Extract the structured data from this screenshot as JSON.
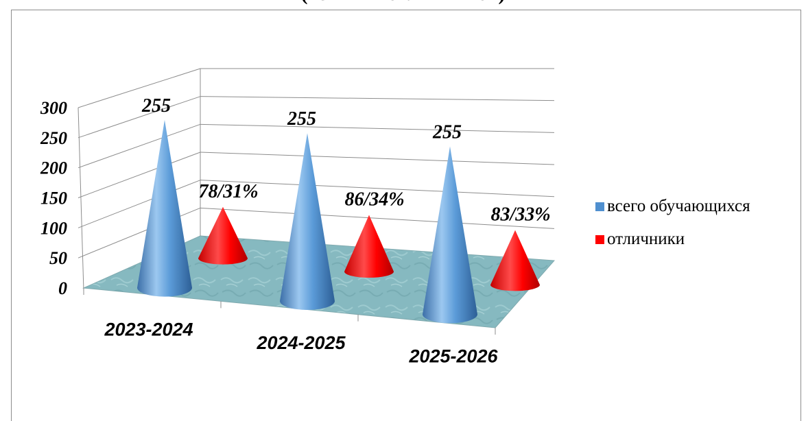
{
  "chart_data": {
    "type": "bar",
    "title": "(из них – отличников)",
    "categories": [
      "2023-2024",
      "2024-2025",
      "2025-2026"
    ],
    "series": [
      {
        "name": "всего обучающихся",
        "values": [
          255,
          255,
          255
        ],
        "labels": [
          "255",
          "255",
          "255"
        ],
        "color": "#4f8fcf"
      },
      {
        "name": "отличники",
        "values": [
          78,
          86,
          83
        ],
        "labels": [
          "78/31%",
          "86/34%",
          "83/33%"
        ],
        "color": "#ff0000"
      }
    ],
    "ylim": [
      0,
      300
    ],
    "yticks": [
      "0",
      "50",
      "100",
      "150",
      "200",
      "250",
      "300"
    ],
    "grid": true,
    "legend": "right",
    "floor_color": "#86b9c0",
    "shape": "cone-3d"
  }
}
